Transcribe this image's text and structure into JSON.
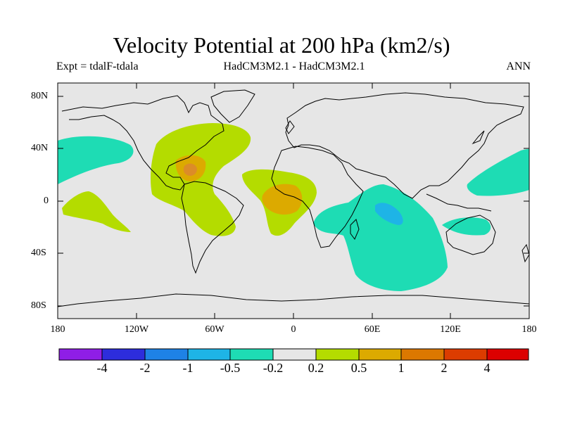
{
  "title": "Velocity Potential at 200 hPa (km2/s)",
  "subtitle_left": "Expt = tdalF-tdala",
  "subtitle_center": "HadCM3M2.1 - HadCM3M2.1",
  "subtitle_right": "ANN",
  "lat_labels": [
    "80N",
    "40N",
    "0",
    "40S",
    "80S"
  ],
  "lon_labels": [
    "180",
    "120W",
    "60W",
    "0",
    "60E",
    "120E",
    "180"
  ],
  "colorbar": {
    "colors": [
      "#8f1ee6",
      "#2d2ddc",
      "#1e82e6",
      "#1eb4e6",
      "#1edcb4",
      "#e6e6e6",
      "#b4dc00",
      "#dcaa00",
      "#dc7800",
      "#dc3c00",
      "#dc0000"
    ],
    "labels": [
      "-4",
      "-2",
      "-1",
      "-0.5",
      "-0.2",
      "0.2",
      "0.5",
      "1",
      "2",
      "4"
    ]
  },
  "colors": {
    "background": "#e6e6e6",
    "positive_weak": "#b4dc00",
    "positive_mid": "#dcaa00",
    "positive_strong": "#dc8c28",
    "negative_weak": "#1edcb4",
    "negative_mid": "#1eb4e6",
    "coast": "#000000"
  }
}
